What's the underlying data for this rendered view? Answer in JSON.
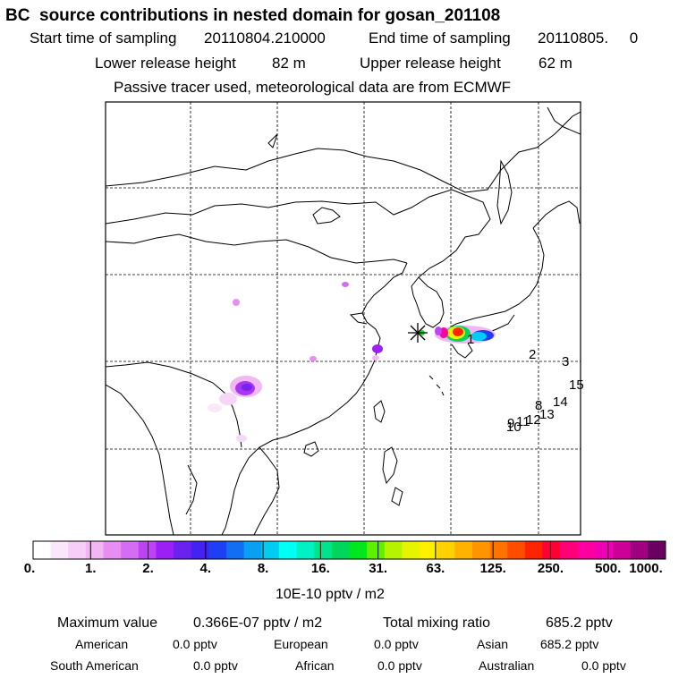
{
  "header": {
    "title": "BC  source contributions in nested domain for gosan_201108",
    "start_label": "Start time of sampling",
    "start_value": "20110804.210000",
    "end_label": "End time of sampling",
    "end_value": "20110805.     0",
    "lower_label": "Lower release height",
    "lower_value": "82 m",
    "upper_label": "Upper release height",
    "upper_value": "62 m",
    "note": "Passive tracer used, meteorological data are from ECMWF"
  },
  "map": {
    "trajectory_labels": [
      "1",
      "2",
      "3",
      "15",
      "14",
      "8",
      "13",
      "12",
      "11",
      "10",
      "9"
    ],
    "receptor_marker": "star-marker"
  },
  "colorbar": {
    "colors": [
      "#ffffff",
      "#fbe7fb",
      "#f7cef7",
      "#f2b6f4",
      "#e88df2",
      "#d56df2",
      "#bd43f4",
      "#9c1ff5",
      "#6b22ef",
      "#4422f3",
      "#1f3ff4",
      "#126ff4",
      "#09a0f4",
      "#00cdf1",
      "#00fff5",
      "#00f2c4",
      "#00e48e",
      "#00d65b",
      "#00e61f",
      "#5fef00",
      "#b6f300",
      "#e7f400",
      "#fff000",
      "#ffd100",
      "#ffb300",
      "#ff9400",
      "#ff7300",
      "#ff4d00",
      "#ff2200",
      "#ff0033",
      "#ff0077",
      "#ff00a0",
      "#f000b4",
      "#cc0099",
      "#9e0080",
      "#6a0060"
    ],
    "tick_labels": [
      "0.",
      "1.",
      "2.",
      "4.",
      "8.",
      "16.",
      "31.",
      "63.",
      "125.",
      "250.",
      "500.",
      "1000."
    ],
    "unit": "10E-10 pptv / m2"
  },
  "stats": {
    "max_label": "Maximum value",
    "max_value": "0.366E-07 pptv / m2",
    "total_label": "Total mixing ratio",
    "total_value": "685.2 pptv",
    "regions_row1": [
      {
        "name": "American",
        "value": "0.0 pptv"
      },
      {
        "name": "European",
        "value": "0.0 pptv"
      },
      {
        "name": "Asian",
        "value": "685.2 pptv"
      }
    ],
    "regions_row2": [
      {
        "name": "South American",
        "value": "0.0 pptv"
      },
      {
        "name": "African",
        "value": "0.0 pptv"
      },
      {
        "name": "Australian",
        "value": "0.0 pptv"
      }
    ]
  }
}
